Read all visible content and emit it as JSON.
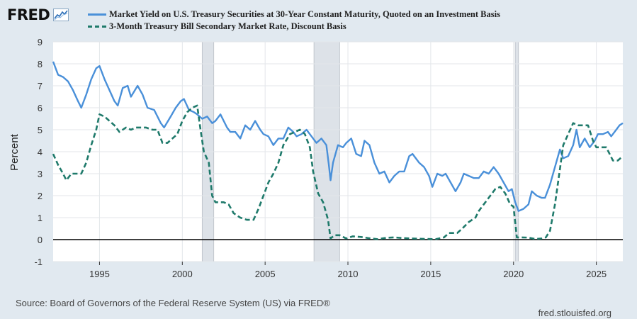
{
  "header": {
    "logo_text": "FRED",
    "logo_icon": "trend-line-icon"
  },
  "legend": {
    "series_1": "Market Yield on U.S. Treasury Securities at 30-Year Constant Maturity, Quoted on an Investment Basis",
    "series_2": "3-Month Treasury Bill Secondary Market Rate, Discount Basis"
  },
  "footer": {
    "source": "Source: Board of Governors of the Federal Reserve System (US) via FRED®",
    "url": "fred.stlouisfed.org"
  },
  "chart_data": {
    "type": "line",
    "ylabel": "Percent",
    "xlabel": "",
    "xlim": [
      1992.2,
      2026.6
    ],
    "ylim": [
      -1,
      9
    ],
    "yticks": [
      "9",
      "8",
      "7",
      "6",
      "5",
      "4",
      "3",
      "2",
      "1",
      "0",
      "-1"
    ],
    "xticks": [
      "1995",
      "2000",
      "2005",
      "2010",
      "2015",
      "2020",
      "2025"
    ],
    "grid": true,
    "legend_position": "top",
    "recessions": [
      [
        2001.2,
        2001.9
      ],
      [
        2007.95,
        2009.5
      ],
      [
        2020.1,
        2020.3
      ]
    ],
    "colors": {
      "series_1": "#4a90d9",
      "series_2": "#1f7a6b",
      "recession": "#dde2e8",
      "zero_line": "#000000"
    },
    "series": [
      {
        "name": "Market Yield on U.S. Treasury Securities at 30-Year Constant Maturity, Quoted on an Investment Basis",
        "style": "solid",
        "points": [
          [
            1992.2,
            8.1
          ],
          [
            1992.5,
            7.5
          ],
          [
            1992.8,
            7.4
          ],
          [
            1993.1,
            7.2
          ],
          [
            1993.4,
            6.8
          ],
          [
            1993.7,
            6.3
          ],
          [
            1993.9,
            6.0
          ],
          [
            1994.2,
            6.6
          ],
          [
            1994.5,
            7.3
          ],
          [
            1994.8,
            7.8
          ],
          [
            1995.0,
            7.9
          ],
          [
            1995.3,
            7.3
          ],
          [
            1995.6,
            6.8
          ],
          [
            1995.9,
            6.3
          ],
          [
            1996.1,
            6.1
          ],
          [
            1996.4,
            6.9
          ],
          [
            1996.7,
            7.0
          ],
          [
            1996.9,
            6.5
          ],
          [
            1997.3,
            7.0
          ],
          [
            1997.6,
            6.6
          ],
          [
            1997.9,
            6.0
          ],
          [
            1998.3,
            5.9
          ],
          [
            1998.7,
            5.3
          ],
          [
            1998.9,
            5.1
          ],
          [
            1999.3,
            5.6
          ],
          [
            1999.6,
            6.0
          ],
          [
            1999.9,
            6.3
          ],
          [
            2000.1,
            6.4
          ],
          [
            2000.4,
            5.9
          ],
          [
            2000.7,
            5.8
          ],
          [
            2000.9,
            5.7
          ],
          [
            2001.2,
            5.5
          ],
          [
            2001.5,
            5.6
          ],
          [
            2001.8,
            5.3
          ],
          [
            2002.0,
            5.4
          ],
          [
            2002.3,
            5.7
          ],
          [
            2002.7,
            5.1
          ],
          [
            2002.9,
            4.9
          ],
          [
            2003.2,
            4.9
          ],
          [
            2003.5,
            4.6
          ],
          [
            2003.8,
            5.2
          ],
          [
            2004.1,
            5.0
          ],
          [
            2004.4,
            5.4
          ],
          [
            2004.7,
            5.0
          ],
          [
            2004.9,
            4.8
          ],
          [
            2005.2,
            4.7
          ],
          [
            2005.5,
            4.3
          ],
          [
            2005.8,
            4.6
          ],
          [
            2006.1,
            4.6
          ],
          [
            2006.4,
            5.1
          ],
          [
            2006.7,
            4.9
          ],
          [
            2006.9,
            4.7
          ],
          [
            2007.2,
            4.8
          ],
          [
            2007.5,
            5.0
          ],
          [
            2007.8,
            4.7
          ],
          [
            2008.1,
            4.4
          ],
          [
            2008.4,
            4.6
          ],
          [
            2008.7,
            4.3
          ],
          [
            2008.85,
            3.4
          ],
          [
            2008.95,
            2.7
          ],
          [
            2009.1,
            3.5
          ],
          [
            2009.4,
            4.3
          ],
          [
            2009.7,
            4.2
          ],
          [
            2009.9,
            4.4
          ],
          [
            2010.2,
            4.6
          ],
          [
            2010.5,
            3.9
          ],
          [
            2010.8,
            3.8
          ],
          [
            2011.0,
            4.5
          ],
          [
            2011.3,
            4.3
          ],
          [
            2011.6,
            3.5
          ],
          [
            2011.9,
            3.0
          ],
          [
            2012.2,
            3.1
          ],
          [
            2012.5,
            2.6
          ],
          [
            2012.8,
            2.9
          ],
          [
            2013.1,
            3.1
          ],
          [
            2013.4,
            3.1
          ],
          [
            2013.7,
            3.8
          ],
          [
            2013.9,
            3.9
          ],
          [
            2014.3,
            3.5
          ],
          [
            2014.6,
            3.3
          ],
          [
            2014.9,
            2.9
          ],
          [
            2015.1,
            2.4
          ],
          [
            2015.4,
            3.0
          ],
          [
            2015.7,
            2.9
          ],
          [
            2015.9,
            3.0
          ],
          [
            2016.2,
            2.6
          ],
          [
            2016.5,
            2.2
          ],
          [
            2016.8,
            2.6
          ],
          [
            2017.0,
            3.0
          ],
          [
            2017.3,
            2.9
          ],
          [
            2017.6,
            2.8
          ],
          [
            2017.9,
            2.8
          ],
          [
            2018.2,
            3.1
          ],
          [
            2018.5,
            3.0
          ],
          [
            2018.8,
            3.3
          ],
          [
            2019.1,
            3.0
          ],
          [
            2019.4,
            2.6
          ],
          [
            2019.7,
            2.2
          ],
          [
            2019.9,
            2.3
          ],
          [
            2020.1,
            1.7
          ],
          [
            2020.3,
            1.3
          ],
          [
            2020.6,
            1.4
          ],
          [
            2020.9,
            1.6
          ],
          [
            2021.1,
            2.2
          ],
          [
            2021.4,
            2.0
          ],
          [
            2021.7,
            1.9
          ],
          [
            2021.9,
            1.9
          ],
          [
            2022.2,
            2.5
          ],
          [
            2022.5,
            3.3
          ],
          [
            2022.8,
            4.1
          ],
          [
            2023.0,
            3.7
          ],
          [
            2023.3,
            3.8
          ],
          [
            2023.6,
            4.3
          ],
          [
            2023.8,
            5.0
          ],
          [
            2024.0,
            4.2
          ],
          [
            2024.3,
            4.6
          ],
          [
            2024.6,
            4.2
          ],
          [
            2024.9,
            4.5
          ],
          [
            2025.1,
            4.8
          ],
          [
            2025.4,
            4.8
          ],
          [
            2025.7,
            4.9
          ],
          [
            2025.9,
            4.7
          ],
          [
            2026.2,
            5.0
          ],
          [
            2026.4,
            5.2
          ],
          [
            2026.6,
            5.3
          ]
        ]
      },
      {
        "name": "3-Month Treasury Bill Secondary Market Rate, Discount Basis",
        "style": "dashed",
        "points": [
          [
            1992.2,
            3.9
          ],
          [
            1992.5,
            3.4
          ],
          [
            1992.8,
            3.0
          ],
          [
            1993.0,
            2.7
          ],
          [
            1993.3,
            3.0
          ],
          [
            1993.6,
            3.0
          ],
          [
            1993.9,
            3.0
          ],
          [
            1994.2,
            3.5
          ],
          [
            1994.5,
            4.3
          ],
          [
            1994.8,
            5.0
          ],
          [
            1995.0,
            5.7
          ],
          [
            1995.3,
            5.6
          ],
          [
            1995.6,
            5.4
          ],
          [
            1995.9,
            5.2
          ],
          [
            1996.2,
            4.9
          ],
          [
            1996.6,
            5.1
          ],
          [
            1996.9,
            5.0
          ],
          [
            1997.2,
            5.1
          ],
          [
            1997.5,
            5.1
          ],
          [
            1997.8,
            5.1
          ],
          [
            1998.2,
            5.0
          ],
          [
            1998.5,
            5.0
          ],
          [
            1998.8,
            4.4
          ],
          [
            1999.1,
            4.4
          ],
          [
            1999.4,
            4.6
          ],
          [
            1999.7,
            4.8
          ],
          [
            2000.0,
            5.4
          ],
          [
            2000.3,
            5.8
          ],
          [
            2000.6,
            6.0
          ],
          [
            2000.9,
            6.1
          ],
          [
            2001.1,
            5.0
          ],
          [
            2001.3,
            4.0
          ],
          [
            2001.6,
            3.5
          ],
          [
            2001.8,
            2.0
          ],
          [
            2002.0,
            1.7
          ],
          [
            2002.5,
            1.7
          ],
          [
            2002.8,
            1.6
          ],
          [
            2003.1,
            1.2
          ],
          [
            2003.5,
            1.0
          ],
          [
            2003.9,
            0.9
          ],
          [
            2004.3,
            0.9
          ],
          [
            2004.6,
            1.4
          ],
          [
            2004.9,
            2.0
          ],
          [
            2005.2,
            2.6
          ],
          [
            2005.5,
            3.0
          ],
          [
            2005.8,
            3.5
          ],
          [
            2006.1,
            4.3
          ],
          [
            2006.5,
            4.8
          ],
          [
            2006.8,
            4.9
          ],
          [
            2007.1,
            5.0
          ],
          [
            2007.4,
            4.8
          ],
          [
            2007.7,
            4.2
          ],
          [
            2007.9,
            3.1
          ],
          [
            2008.2,
            2.1
          ],
          [
            2008.5,
            1.7
          ],
          [
            2008.8,
            0.9
          ],
          [
            2008.95,
            0.05
          ],
          [
            2009.2,
            0.2
          ],
          [
            2009.5,
            0.2
          ],
          [
            2009.9,
            0.05
          ],
          [
            2010.3,
            0.15
          ],
          [
            2010.8,
            0.12
          ],
          [
            2011.3,
            0.06
          ],
          [
            2011.8,
            0.02
          ],
          [
            2012.3,
            0.08
          ],
          [
            2012.8,
            0.1
          ],
          [
            2013.3,
            0.07
          ],
          [
            2013.8,
            0.05
          ],
          [
            2014.3,
            0.04
          ],
          [
            2014.8,
            0.03
          ],
          [
            2015.3,
            0.02
          ],
          [
            2015.8,
            0.1
          ],
          [
            2016.1,
            0.3
          ],
          [
            2016.6,
            0.3
          ],
          [
            2016.9,
            0.5
          ],
          [
            2017.3,
            0.8
          ],
          [
            2017.7,
            1.0
          ],
          [
            2017.9,
            1.3
          ],
          [
            2018.3,
            1.7
          ],
          [
            2018.6,
            2.0
          ],
          [
            2018.9,
            2.3
          ],
          [
            2019.2,
            2.4
          ],
          [
            2019.5,
            2.1
          ],
          [
            2019.8,
            1.6
          ],
          [
            2020.0,
            1.5
          ],
          [
            2020.2,
            0.1
          ],
          [
            2020.5,
            0.1
          ],
          [
            2020.9,
            0.09
          ],
          [
            2021.3,
            0.03
          ],
          [
            2021.7,
            0.05
          ],
          [
            2021.95,
            0.1
          ],
          [
            2022.2,
            0.4
          ],
          [
            2022.5,
            1.6
          ],
          [
            2022.8,
            3.2
          ],
          [
            2023.0,
            4.3
          ],
          [
            2023.3,
            4.8
          ],
          [
            2023.6,
            5.3
          ],
          [
            2023.9,
            5.2
          ],
          [
            2024.2,
            5.2
          ],
          [
            2024.5,
            5.2
          ],
          [
            2024.8,
            4.5
          ],
          [
            2025.0,
            4.2
          ],
          [
            2025.3,
            4.2
          ],
          [
            2025.6,
            4.2
          ],
          [
            2025.8,
            3.9
          ],
          [
            2026.0,
            3.6
          ],
          [
            2026.3,
            3.6
          ],
          [
            2026.6,
            3.8
          ]
        ]
      }
    ]
  }
}
